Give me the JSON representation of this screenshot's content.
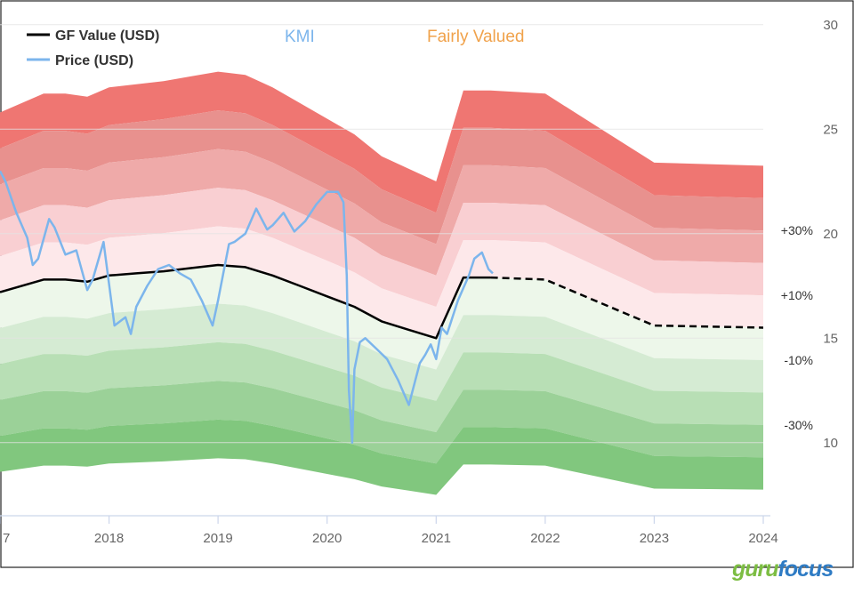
{
  "ticker": "KMI",
  "valuation_status": "Fairly Valued",
  "watermark": {
    "part1": "guru",
    "part2": "focus"
  },
  "colors": {
    "ticker": "#7cb5ec",
    "status": "#f0a24b",
    "gf_value_line": "#000000",
    "price_line": "#7cb5ec",
    "upper_bands": [
      "#ef7672",
      "#e8918e",
      "#efaaa9",
      "#f9cfd2",
      "#fde8ea"
    ],
    "lower_bands": [
      "#edf7ea",
      "#d5ebd3",
      "#b8dfb5",
      "#9bd198",
      "#81c77e"
    ],
    "watermark1": "#7cbd42",
    "watermark2": "#2e7bc4"
  },
  "chart_data": {
    "type": "area",
    "title": "",
    "xlabel": "",
    "ylabel": "",
    "legend": {
      "position": "top-left",
      "items": [
        "GF Value (USD)",
        "Price (USD)"
      ]
    },
    "x_ticks": [
      "7",
      "2018",
      "2019",
      "2020",
      "2021",
      "2022",
      "2023",
      "2024"
    ],
    "x_range": [
      2017.0,
      2024.0
    ],
    "y_ticks": [
      10,
      15,
      20,
      25,
      30
    ],
    "ylim": [
      6.5,
      30.5
    ],
    "grid": "horizontal",
    "band_labels": [
      "+30%",
      "+10%",
      "-10%",
      "-30%"
    ],
    "band_multipliers": [
      1.5,
      1.4,
      1.3,
      1.2,
      1.1,
      1.0,
      0.9,
      0.8,
      0.7,
      0.6,
      0.5
    ],
    "gf_value": {
      "name": "GF Value (USD)",
      "x": [
        2017.0,
        2017.4,
        2017.6,
        2017.8,
        2018.0,
        2018.25,
        2018.5,
        2018.75,
        2019.0,
        2019.25,
        2019.5,
        2019.75,
        2020.0,
        2020.25,
        2020.5,
        2020.75,
        2021.0,
        2021.25,
        2021.5,
        2022.0,
        2022.5,
        2023.0,
        2023.5,
        2024.0
      ],
      "y": [
        17.2,
        17.8,
        17.8,
        17.7,
        18.0,
        18.1,
        18.2,
        18.35,
        18.5,
        18.4,
        18.0,
        17.5,
        17.0,
        16.5,
        15.8,
        15.4,
        15.0,
        17.9,
        17.9,
        17.8,
        16.7,
        15.6,
        15.55,
        15.5
      ],
      "projected_from": 2021.5
    },
    "price": {
      "name": "Price (USD)",
      "x": [
        2017.0,
        2017.05,
        2017.15,
        2017.25,
        2017.3,
        2017.35,
        2017.45,
        2017.5,
        2017.6,
        2017.7,
        2017.8,
        2017.85,
        2017.95,
        2018.05,
        2018.15,
        2018.2,
        2018.25,
        2018.35,
        2018.45,
        2018.55,
        2018.65,
        2018.75,
        2018.85,
        2018.95,
        2019.0,
        2019.1,
        2019.15,
        2019.25,
        2019.35,
        2019.45,
        2019.5,
        2019.6,
        2019.7,
        2019.8,
        2019.9,
        2020.0,
        2020.1,
        2020.15,
        2020.18,
        2020.2,
        2020.23,
        2020.25,
        2020.3,
        2020.35,
        2020.45,
        2020.55,
        2020.65,
        2020.75,
        2020.85,
        2020.9,
        2020.95,
        2021.0,
        2021.05,
        2021.1,
        2021.2,
        2021.3,
        2021.35,
        2021.42,
        2021.48,
        2021.52
      ],
      "y": [
        23.0,
        22.5,
        21.0,
        19.8,
        18.5,
        18.8,
        20.7,
        20.3,
        19.0,
        19.2,
        17.3,
        17.8,
        19.6,
        15.6,
        16.0,
        15.2,
        16.5,
        17.5,
        18.3,
        18.5,
        18.1,
        17.8,
        16.8,
        15.6,
        16.8,
        19.5,
        19.6,
        20.0,
        21.2,
        20.2,
        20.4,
        21.0,
        20.1,
        20.6,
        21.4,
        22.0,
        22.0,
        21.5,
        18.0,
        12.5,
        10.0,
        13.5,
        14.8,
        15.0,
        14.5,
        14.0,
        13.0,
        11.8,
        13.8,
        14.2,
        14.7,
        14.0,
        15.5,
        15.2,
        16.8,
        18.0,
        18.8,
        19.1,
        18.3,
        18.1
      ]
    }
  }
}
